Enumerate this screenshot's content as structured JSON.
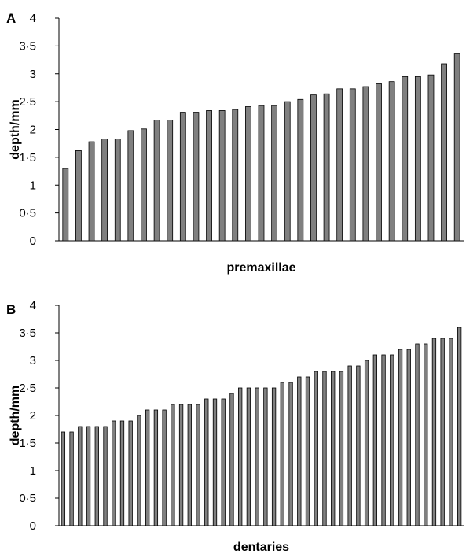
{
  "chart_data": [
    {
      "panel": "A",
      "type": "bar",
      "xlabel": "premaxillae",
      "ylabel": "depth/mm",
      "ylim": [
        0,
        4
      ],
      "yticks": [
        "0",
        "0·5",
        "1",
        "1·5",
        "2",
        "2·5",
        "3",
        "3·5",
        "4"
      ],
      "grid": false,
      "bar_color": "#808080",
      "values": [
        1.3,
        1.62,
        1.78,
        1.83,
        1.83,
        1.98,
        2.01,
        2.17,
        2.17,
        2.31,
        2.31,
        2.34,
        2.34,
        2.36,
        2.41,
        2.43,
        2.43,
        2.5,
        2.54,
        2.62,
        2.64,
        2.73,
        2.73,
        2.77,
        2.82,
        2.86,
        2.95,
        2.95,
        2.98,
        3.18,
        3.37
      ]
    },
    {
      "panel": "B",
      "type": "bar",
      "xlabel": "dentaries",
      "ylabel": "depth/mm",
      "ylim": [
        0,
        4
      ],
      "yticks": [
        "0",
        "0·5",
        "1",
        "1·5",
        "2",
        "2·5",
        "3",
        "3·5",
        "4"
      ],
      "grid": false,
      "bar_color": "#808080",
      "values": [
        1.7,
        1.7,
        1.8,
        1.8,
        1.8,
        1.8,
        1.9,
        1.9,
        1.9,
        2.0,
        2.1,
        2.1,
        2.1,
        2.2,
        2.2,
        2.2,
        2.2,
        2.3,
        2.3,
        2.3,
        2.4,
        2.5,
        2.5,
        2.5,
        2.5,
        2.5,
        2.6,
        2.6,
        2.7,
        2.7,
        2.8,
        2.8,
        2.8,
        2.8,
        2.9,
        2.9,
        3.0,
        3.1,
        3.1,
        3.1,
        3.2,
        3.2,
        3.3,
        3.3,
        3.4,
        3.4,
        3.4,
        3.6
      ]
    }
  ]
}
